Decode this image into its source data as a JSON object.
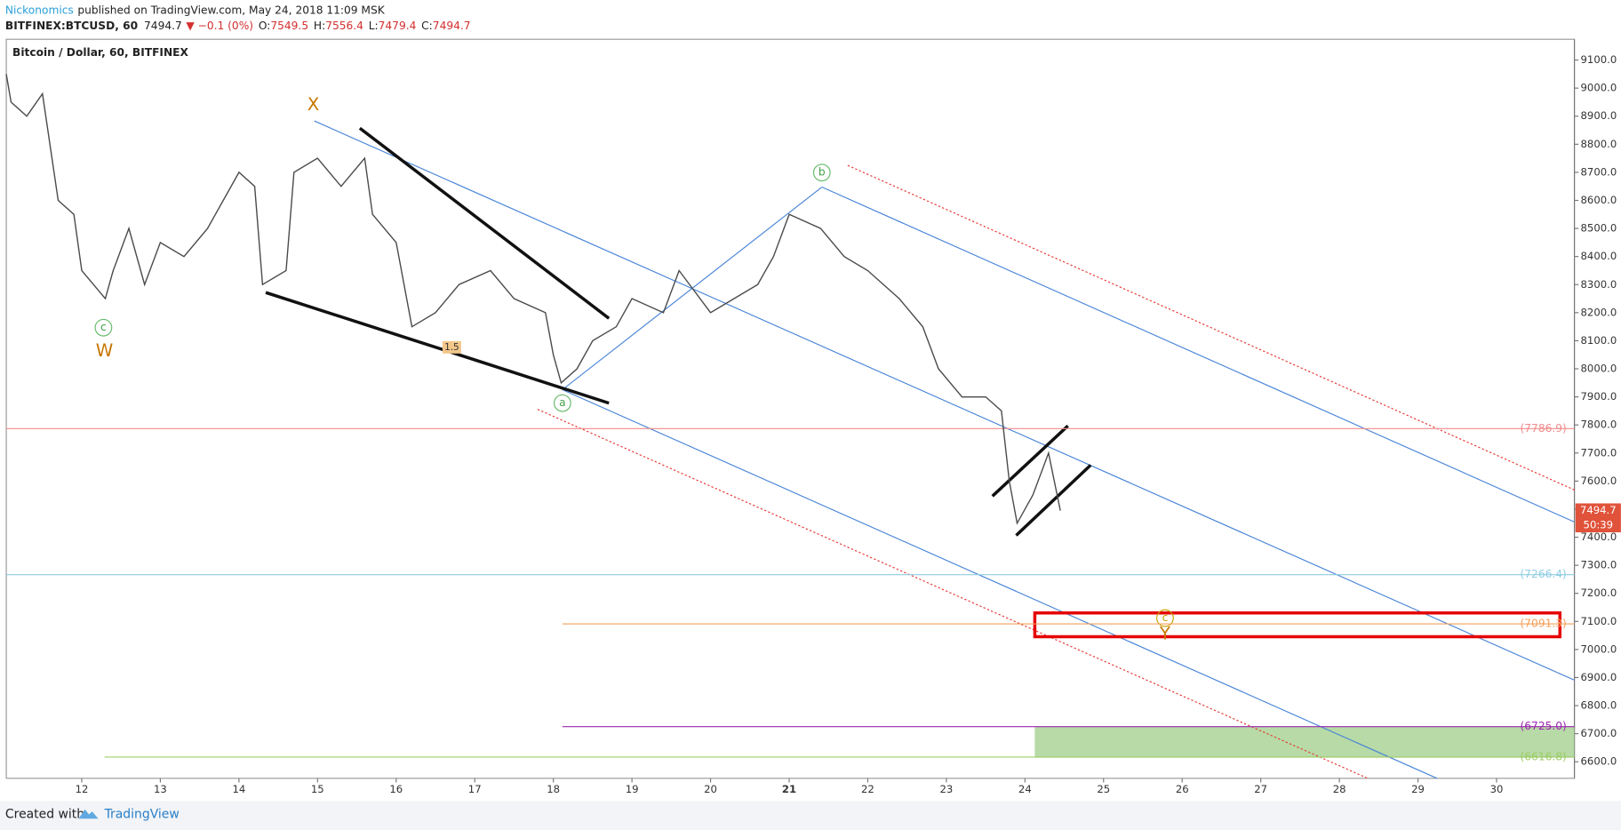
{
  "header": {
    "publisher": "Nickonomics",
    "published": "published on TradingView.com, May 24, 2018 11:09 MSK",
    "symbol": "BITFINEX:BTCUSD, 60",
    "last": 7494.7,
    "change": "▼ −0.1 (0%)",
    "ohlc": [
      {
        "label": "O:",
        "value": 7549.5
      },
      {
        "label": "H:",
        "value": 7556.4
      },
      {
        "label": "L:",
        "value": 7479.4
      },
      {
        "label": "C:",
        "value": 7494.7
      }
    ]
  },
  "footer": {
    "created": "Created with",
    "brand": "TradingView"
  },
  "chart_data": {
    "type": "line",
    "title": "Bitcoin / Dollar, 60, BITFINEX",
    "x": [
      11.04,
      11.1,
      11.3,
      11.5,
      11.7,
      11.9,
      12.0,
      12.3,
      12.4,
      12.6,
      12.8,
      13.0,
      13.3,
      13.6,
      14.0,
      14.2,
      14.3,
      14.6,
      14.7,
      15.0,
      15.3,
      15.6,
      15.7,
      16.0,
      16.2,
      16.5,
      16.8,
      17.2,
      17.5,
      17.9,
      18.0,
      18.1,
      18.3,
      18.5,
      18.8,
      19.0,
      19.4,
      19.6,
      20.0,
      20.3,
      20.6,
      20.8,
      21.0,
      21.4,
      21.7,
      22.0,
      22.4,
      22.7,
      22.9,
      23.2,
      23.5,
      23.7,
      23.8,
      23.9,
      24.1,
      24.3,
      24.45
    ],
    "series": [
      {
        "name": "BTCUSD",
        "color": "#4a4a4a",
        "values": [
          9050,
          8950,
          8900,
          8980,
          8600,
          8550,
          8350,
          8250,
          8350,
          8500,
          8300,
          8450,
          8400,
          8500,
          8700,
          8650,
          8300,
          8350,
          8700,
          8750,
          8650,
          8750,
          8550,
          8450,
          8150,
          8200,
          8300,
          8350,
          8250,
          8200,
          8050,
          7950,
          8000,
          8100,
          8150,
          8250,
          8200,
          8350,
          8200,
          8250,
          8300,
          8400,
          8550,
          8500,
          8400,
          8350,
          8250,
          8150,
          8000,
          7900,
          7900,
          7850,
          7600,
          7450,
          7550,
          7700,
          7494.7
        ]
      }
    ],
    "xlim": [
      11.04,
      30.99
    ],
    "ylim": [
      6541,
      9174
    ],
    "xticks": [
      12,
      13,
      14,
      15,
      16,
      17,
      18,
      19,
      20,
      21,
      22,
      23,
      24,
      25,
      26,
      27,
      28,
      29,
      30
    ],
    "yticks": [
      {
        "value": 6600,
        "label": "6600.0"
      },
      {
        "value": 6700,
        "label": "6700.0"
      },
      {
        "value": 6800,
        "label": "6800.0"
      },
      {
        "value": 6900,
        "label": "6900.0"
      },
      {
        "value": 7000,
        "label": "7000.0"
      },
      {
        "value": 7100,
        "label": "7100.0"
      },
      {
        "value": 7200,
        "label": "7200.0"
      },
      {
        "value": 7300,
        "label": "7300.0"
      },
      {
        "value": 7400,
        "label": "7400.0"
      },
      {
        "value": 7500,
        "label": "7500.0"
      },
      {
        "value": 7600,
        "label": "7600.0"
      },
      {
        "value": 7700,
        "label": "7700.0"
      },
      {
        "value": 7800,
        "label": "7800.0"
      },
      {
        "value": 7900,
        "label": "7900.0"
      },
      {
        "value": 8000,
        "label": "8000.0"
      },
      {
        "value": 8100,
        "label": "8100.0"
      },
      {
        "value": 8200,
        "label": "8200.0"
      },
      {
        "value": 8300,
        "label": "8300.0"
      },
      {
        "value": 8400,
        "label": "8400.0"
      },
      {
        "value": 8500,
        "label": "8500.0"
      },
      {
        "value": 8600,
        "label": "8600.0"
      },
      {
        "value": 8700,
        "label": "8700.0"
      },
      {
        "value": 8800,
        "label": "8800.0"
      },
      {
        "value": 8900,
        "label": "8900.0"
      },
      {
        "value": 9000,
        "label": "9000.0"
      },
      {
        "value": 9100,
        "label": "9100.0"
      }
    ],
    "levels": [
      {
        "value": 7786.9,
        "label": "(7786.9)",
        "color": "#f28b8b"
      },
      {
        "value": 7266.4,
        "label": "(7266.4)",
        "color": "#8fcde3"
      },
      {
        "value": 7091.3,
        "label": "(7091.3)",
        "color": "#f5a05a"
      },
      {
        "value": 6725.0,
        "label": "(6725.0)",
        "color": "#9c27b0"
      },
      {
        "value": 6616.8,
        "label": "(6616.8)",
        "color": "#9ccc65"
      }
    ],
    "current": {
      "value": 7494.7,
      "countdown": "50:39"
    },
    "annotations": [
      "X",
      "c",
      "W",
      "b",
      "a",
      "c",
      "Y",
      "1.5"
    ]
  }
}
